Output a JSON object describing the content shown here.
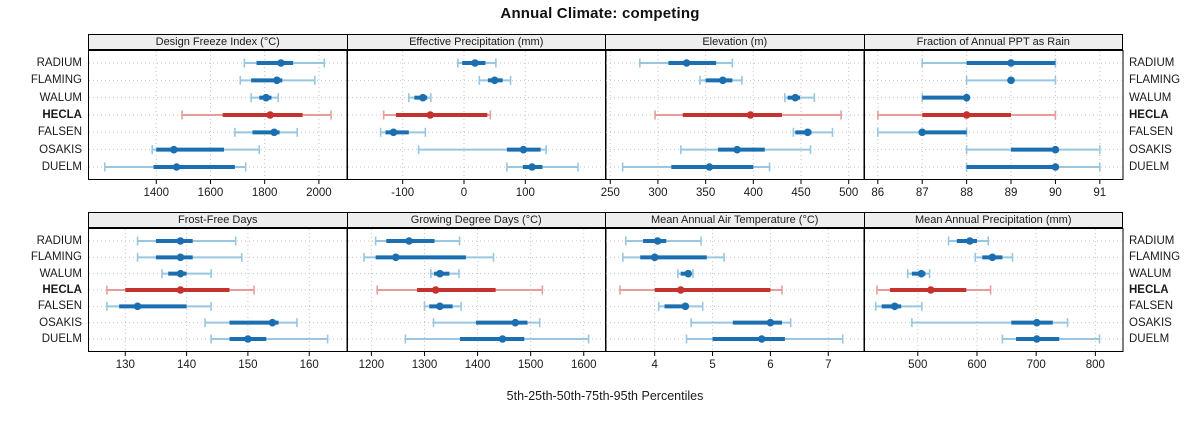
{
  "figure": {
    "title": "Annual Climate: competing",
    "footer": "5th-25th-50th-75th-95th Percentiles"
  },
  "stations": [
    {
      "name": "RADIUM",
      "emphasis": false
    },
    {
      "name": "FLAMING",
      "emphasis": false
    },
    {
      "name": "WALUM",
      "emphasis": false
    },
    {
      "name": "HECLA",
      "emphasis": true
    },
    {
      "name": "FALSEN",
      "emphasis": false
    },
    {
      "name": "OSAKIS",
      "emphasis": false
    },
    {
      "name": "DUELM",
      "emphasis": false
    }
  ],
  "colors": {
    "series": "#1b6fb0",
    "series_light": "#99c7e2",
    "emphasis": "#c5322e",
    "emphasis_light": "#e79e9b",
    "grid": "#c6c6c6",
    "strip_bg": "#eeeeee",
    "border": "#000000"
  },
  "chart_data": [
    {
      "type": "dot-interval",
      "title": "Design Freeze Index (°C)",
      "row": 1,
      "col": 1,
      "domain": [
        1150,
        2100
      ],
      "ticks": [
        1400,
        1600,
        1800,
        2000
      ],
      "percentile_levels": [
        5,
        25,
        50,
        75,
        95
      ],
      "percentiles": {
        "RADIUM": [
          1725,
          1770,
          1860,
          1905,
          2020
        ],
        "FLAMING": [
          1710,
          1750,
          1845,
          1865,
          1985
        ],
        "WALUM": [
          1750,
          1780,
          1805,
          1825,
          1850
        ],
        "HECLA": [
          1495,
          1645,
          1820,
          1940,
          2045
        ],
        "FALSEN": [
          1690,
          1755,
          1835,
          1855,
          1920
        ],
        "OSAKIS": [
          1385,
          1400,
          1465,
          1650,
          1780
        ],
        "DUELM": [
          1210,
          1390,
          1475,
          1690,
          1730
        ]
      }
    },
    {
      "type": "dot-interval",
      "title": "Effective Precipitation (mm)",
      "row": 1,
      "col": 2,
      "domain": [
        -190,
        230
      ],
      "ticks": [
        -100,
        0,
        100
      ],
      "percentile_levels": [
        5,
        25,
        50,
        75,
        95
      ],
      "percentiles": {
        "RADIUM": [
          -10,
          -3,
          18,
          35,
          52
        ],
        "FLAMING": [
          25,
          39,
          50,
          63,
          76
        ],
        "WALUM": [
          -90,
          -81,
          -67,
          -60,
          -54
        ],
        "HECLA": [
          -131,
          -111,
          -55,
          38,
          43
        ],
        "FALSEN": [
          -136,
          -128,
          -115,
          -90,
          -63
        ],
        "OSAKIS": [
          -74,
          70,
          97,
          125,
          134
        ],
        "DUELM": [
          70,
          96,
          111,
          128,
          186
        ]
      }
    },
    {
      "type": "dot-interval",
      "title": "Elevation (m)",
      "row": 1,
      "col": 3,
      "domain": [
        245,
        515
      ],
      "ticks": [
        250,
        300,
        350,
        400,
        450,
        500
      ],
      "percentile_levels": [
        5,
        25,
        50,
        75,
        95
      ],
      "percentiles": {
        "RADIUM": [
          281,
          311,
          330,
          361,
          378
        ],
        "FLAMING": [
          344,
          350,
          368,
          378,
          388
        ],
        "WALUM": [
          433,
          436,
          444,
          449,
          464
        ],
        "HECLA": [
          297,
          326,
          397,
          430,
          492
        ],
        "FALSEN": [
          442,
          444,
          457,
          461,
          483
        ],
        "OSAKIS": [
          324,
          363,
          383,
          412,
          460
        ],
        "DUELM": [
          263,
          314,
          354,
          400,
          417
        ]
      }
    },
    {
      "type": "dot-interval",
      "title": "Fraction of Annual PPT as Rain",
      "row": 1,
      "col": 4,
      "domain": [
        85.7,
        91.5
      ],
      "ticks": [
        86,
        87,
        88,
        89,
        90,
        91
      ],
      "percentile_levels": [
        5,
        25,
        50,
        75,
        95
      ],
      "percentiles": {
        "RADIUM": [
          87,
          88,
          89,
          90,
          90
        ],
        "FLAMING": [
          88,
          89,
          89,
          89,
          90
        ],
        "WALUM": [
          87,
          87,
          88,
          88,
          88
        ],
        "HECLA": [
          86,
          87,
          88,
          89,
          90
        ],
        "FALSEN": [
          86,
          87,
          87,
          88,
          88
        ],
        "OSAKIS": [
          88,
          89,
          90,
          90,
          91
        ],
        "DUELM": [
          88,
          88,
          90,
          90,
          91
        ]
      }
    },
    {
      "type": "dot-interval",
      "title": "Frost-Free Days",
      "row": 2,
      "col": 1,
      "domain": [
        124,
        166
      ],
      "ticks": [
        130,
        140,
        150,
        160
      ],
      "percentile_levels": [
        5,
        25,
        50,
        75,
        95
      ],
      "percentiles": {
        "RADIUM": [
          132,
          135,
          139,
          141,
          148
        ],
        "FLAMING": [
          132,
          135,
          139,
          141,
          149
        ],
        "WALUM": [
          136,
          137,
          139,
          140,
          144
        ],
        "HECLA": [
          127,
          130,
          139,
          147,
          151
        ],
        "FALSEN": [
          127,
          129,
          132,
          140,
          144
        ],
        "OSAKIS": [
          143,
          147,
          154,
          155,
          158
        ],
        "DUELM": [
          144,
          147,
          150,
          153,
          163
        ]
      }
    },
    {
      "type": "dot-interval",
      "title": "Growing Degree Days (°C)",
      "row": 2,
      "col": 2,
      "domain": [
        1155,
        1640
      ],
      "ticks": [
        1200,
        1300,
        1400,
        1500,
        1600
      ],
      "percentile_levels": [
        5,
        25,
        50,
        75,
        95
      ],
      "percentiles": {
        "RADIUM": [
          1208,
          1228,
          1271,
          1319,
          1366
        ],
        "FLAMING": [
          1186,
          1208,
          1246,
          1378,
          1430
        ],
        "WALUM": [
          1312,
          1318,
          1329,
          1347,
          1365
        ],
        "HECLA": [
          1211,
          1286,
          1321,
          1434,
          1522
        ],
        "FALSEN": [
          1300,
          1309,
          1329,
          1353,
          1369
        ],
        "OSAKIS": [
          1317,
          1397,
          1471,
          1494,
          1517
        ],
        "DUELM": [
          1264,
          1367,
          1447,
          1488,
          1609
        ]
      }
    },
    {
      "type": "dot-interval",
      "title": "Mean Annual Air Temperature (°C)",
      "row": 2,
      "col": 3,
      "domain": [
        3.15,
        7.6
      ],
      "ticks": [
        4,
        5,
        6,
        7
      ],
      "percentile_levels": [
        5,
        25,
        50,
        75,
        95
      ],
      "percentiles": {
        "RADIUM": [
          3.5,
          3.8,
          4.05,
          4.2,
          4.8
        ],
        "FLAMING": [
          3.45,
          3.75,
          4.0,
          4.9,
          5.2
        ],
        "WALUM": [
          4.4,
          4.45,
          4.58,
          4.63,
          4.66
        ],
        "HECLA": [
          3.4,
          4.0,
          4.45,
          6.0,
          6.2
        ],
        "FALSEN": [
          4.07,
          4.17,
          4.53,
          4.58,
          4.83
        ],
        "OSAKIS": [
          4.63,
          5.35,
          6.0,
          6.2,
          6.35
        ],
        "DUELM": [
          4.55,
          5.0,
          5.85,
          6.25,
          7.25
        ]
      }
    },
    {
      "type": "dot-interval",
      "title": "Mean Annual Precipitation (mm)",
      "row": 2,
      "col": 4,
      "domain": [
        410,
        845
      ],
      "ticks": [
        500,
        600,
        700,
        800
      ],
      "percentile_levels": [
        5,
        25,
        50,
        75,
        95
      ],
      "percentiles": {
        "RADIUM": [
          552,
          566,
          588,
          600,
          619
        ],
        "FLAMING": [
          597,
          609,
          626,
          643,
          660
        ],
        "WALUM": [
          483,
          490,
          506,
          513,
          520
        ],
        "HECLA": [
          431,
          453,
          522,
          582,
          623
        ],
        "FALSEN": [
          429,
          439,
          461,
          472,
          507
        ],
        "OSAKIS": [
          490,
          658,
          701,
          728,
          753
        ],
        "DUELM": [
          643,
          666,
          701,
          739,
          807
        ]
      }
    }
  ]
}
